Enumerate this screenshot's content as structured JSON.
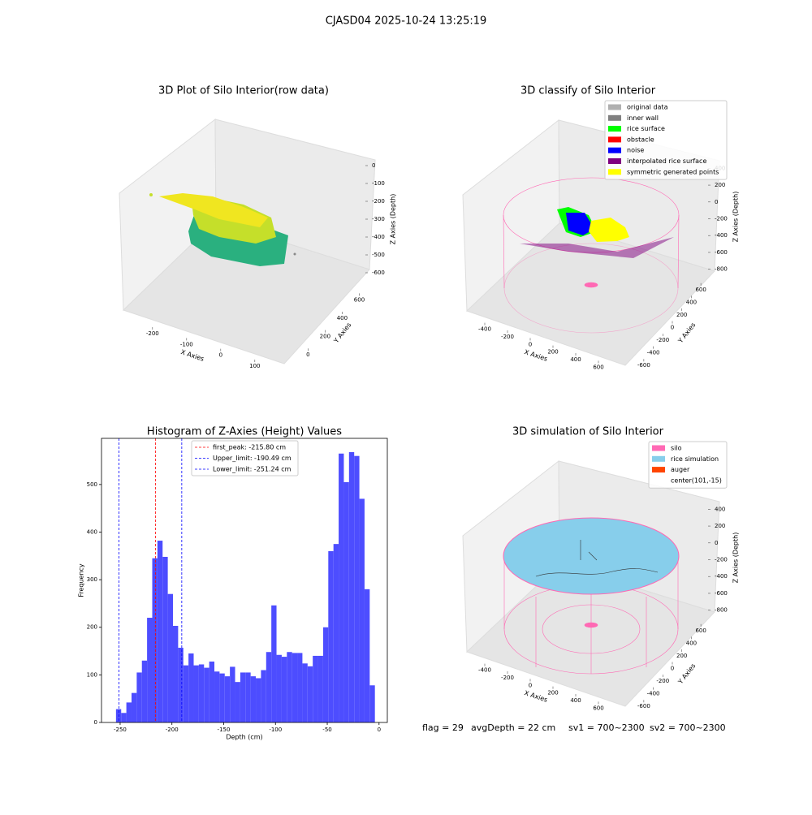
{
  "figure_title": "CJASD04 2025-10-24 13:25:19",
  "chart_data": [
    {
      "type": "scatter3d",
      "title": "3D Plot of Silo Interior(row data)",
      "xlabel": "X Axies",
      "ylabel": "Y Axies",
      "zlabel": "Z Axies (Depth)",
      "xlim": [
        -290,
        160
      ],
      "xticks": [
        -200,
        -100,
        0,
        100
      ],
      "ylim": [
        -60,
        700
      ],
      "yticks": [
        0,
        200,
        400,
        600
      ],
      "zlim": [
        -650,
        50
      ],
      "zticks": [
        0,
        -100,
        -200,
        -300,
        -400,
        -500,
        -600
      ]
    },
    {
      "type": "scatter3d",
      "title": "3D classify of Silo Interior",
      "xlabel": "X Axies",
      "ylabel": "Y Axies",
      "zlabel": "Z Axies (Depth)",
      "xlim": [
        -500,
        700
      ],
      "xticks": [
        -400,
        -200,
        0,
        200,
        400,
        600
      ],
      "ylim": [
        -700,
        700
      ],
      "yticks": [
        -600,
        -400,
        -200,
        0,
        200,
        400,
        600
      ],
      "zlim": [
        -900,
        500
      ],
      "zticks": [
        400,
        200,
        0,
        -200,
        -400,
        -600,
        -800
      ],
      "legend": [
        {
          "name": "original data",
          "color": "#b0b0b0"
        },
        {
          "name": "inner wall",
          "color": "#808080"
        },
        {
          "name": "rice surface",
          "color": "#00ff00"
        },
        {
          "name": "obstacle",
          "color": "#ff0000"
        },
        {
          "name": "noise",
          "color": "#0000ff"
        },
        {
          "name": "interpolated rice surface",
          "color": "#800080"
        },
        {
          "name": "symmetric generated points",
          "color": "#ffff00"
        }
      ]
    },
    {
      "type": "histogram",
      "title": "Histogram of Z-Axies (Height) Values",
      "xlabel": "Depth (cm)",
      "ylabel": "Frequency",
      "color": "#4d4dff",
      "bins": [
        -254,
        -249,
        -244,
        -239,
        -234,
        -229,
        -224,
        -219,
        -214,
        -209,
        -204,
        -199,
        -194,
        -189,
        -184,
        -179,
        -174,
        -169,
        -164,
        -159,
        -154,
        -149,
        -144,
        -139,
        -134,
        -129,
        -124,
        -119,
        -114,
        -109,
        -104,
        -99,
        -94,
        -89,
        -84,
        -79,
        -74,
        -69,
        -64,
        -59,
        -54,
        -49,
        -44,
        -39,
        -34,
        -29,
        -24,
        -19,
        -14,
        -9,
        -4
      ],
      "counts": [
        28,
        20,
        42,
        62,
        105,
        130,
        220,
        345,
        382,
        348,
        270,
        203,
        157,
        120,
        145,
        120,
        122,
        115,
        128,
        107,
        103,
        97,
        117,
        85,
        105,
        105,
        97,
        93,
        110,
        148,
        246,
        142,
        138,
        148,
        146,
        146,
        124,
        118,
        140,
        140,
        200,
        360,
        375,
        565,
        505,
        568,
        560,
        470,
        280,
        78
      ],
      "xlim": [
        -268,
        8
      ],
      "xticks": [
        -250,
        -200,
        -150,
        -100,
        -50,
        0
      ],
      "ylim": [
        0,
        597
      ],
      "yticks": [
        0,
        100,
        200,
        300,
        400,
        500
      ],
      "vlines": [
        {
          "name": "first_peak: -215.80 cm",
          "value": -215.8,
          "color": "#ff0000"
        },
        {
          "name": "Upper_limit: -190.49 cm",
          "value": -190.49,
          "color": "#0000ff"
        },
        {
          "name": "Lower_limit: -251.24 cm",
          "value": -251.24,
          "color": "#0000ff"
        }
      ]
    },
    {
      "type": "scatter3d",
      "title": "3D simulation of Silo Interior",
      "xlabel": "X Axies",
      "ylabel": "Y Axies",
      "zlabel": "Z Axies (Depth)",
      "xlim": [
        -500,
        700
      ],
      "xticks": [
        -400,
        -200,
        0,
        200,
        400,
        600
      ],
      "ylim": [
        -700,
        700
      ],
      "yticks": [
        -600,
        -400,
        -200,
        0,
        200,
        400,
        600
      ],
      "zlim": [
        -900,
        500
      ],
      "zticks": [
        400,
        200,
        0,
        -200,
        -400,
        -600,
        -800
      ],
      "legend": [
        {
          "name": "silo",
          "color": "#ff69b4"
        },
        {
          "name": "rice simulation",
          "color": "#87ceeb"
        },
        {
          "name": "auger",
          "color": "#ff4500"
        },
        {
          "name": "center(101,-15)"
        }
      ]
    }
  ],
  "status": [
    "flag = 29",
    "avgDepth = 22 cm",
    "sv1 = 700~2300",
    "sv2 = 700~2300"
  ]
}
